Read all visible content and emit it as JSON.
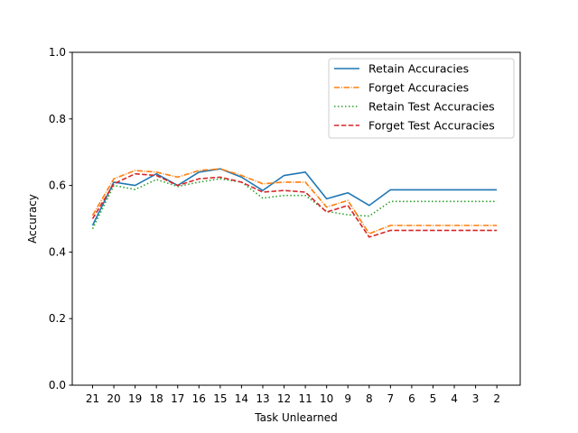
{
  "chart_data": {
    "type": "line",
    "title": "",
    "xlabel": "Task Unlearned",
    "ylabel": "Accuracy",
    "ylim": [
      0.0,
      1.0
    ],
    "yticks": [
      "0.0",
      "0.2",
      "0.4",
      "0.6",
      "0.8",
      "1.0"
    ],
    "categories": [
      "21",
      "20",
      "19",
      "18",
      "17",
      "16",
      "15",
      "14",
      "13",
      "12",
      "11",
      "10",
      "9",
      "8",
      "7",
      "6",
      "5",
      "4",
      "3",
      "2"
    ],
    "grid": false,
    "legend_position": "top-right",
    "series": [
      {
        "name": "Retain Accuracies",
        "color": "#1f77b4",
        "dash": "solid",
        "values": [
          0.48,
          0.61,
          0.6,
          0.635,
          0.6,
          0.64,
          0.65,
          0.625,
          0.585,
          0.63,
          0.64,
          0.56,
          0.578,
          0.54,
          0.587,
          0.587,
          0.587,
          0.587,
          0.587,
          0.587
        ]
      },
      {
        "name": "Forget Accuracies",
        "color": "#ff7f0e",
        "dash": "dashdot",
        "values": [
          0.51,
          0.62,
          0.645,
          0.64,
          0.625,
          0.645,
          0.65,
          0.63,
          0.605,
          0.61,
          0.61,
          0.535,
          0.555,
          0.455,
          0.48,
          0.48,
          0.48,
          0.48,
          0.48,
          0.48
        ]
      },
      {
        "name": "Retain Test Accuracies",
        "color": "#2ca02c",
        "dash": "dotted",
        "values": [
          0.47,
          0.6,
          0.588,
          0.618,
          0.597,
          0.61,
          0.62,
          0.61,
          0.562,
          0.57,
          0.57,
          0.522,
          0.512,
          0.508,
          0.552,
          0.552,
          0.552,
          0.552,
          0.552,
          0.552
        ]
      },
      {
        "name": "Forget Test Accuracies",
        "color": "#d62728",
        "dash": "dashed",
        "values": [
          0.5,
          0.605,
          0.635,
          0.63,
          0.6,
          0.62,
          0.625,
          0.61,
          0.58,
          0.585,
          0.58,
          0.52,
          0.54,
          0.445,
          0.465,
          0.465,
          0.465,
          0.465,
          0.465,
          0.465
        ]
      }
    ]
  }
}
